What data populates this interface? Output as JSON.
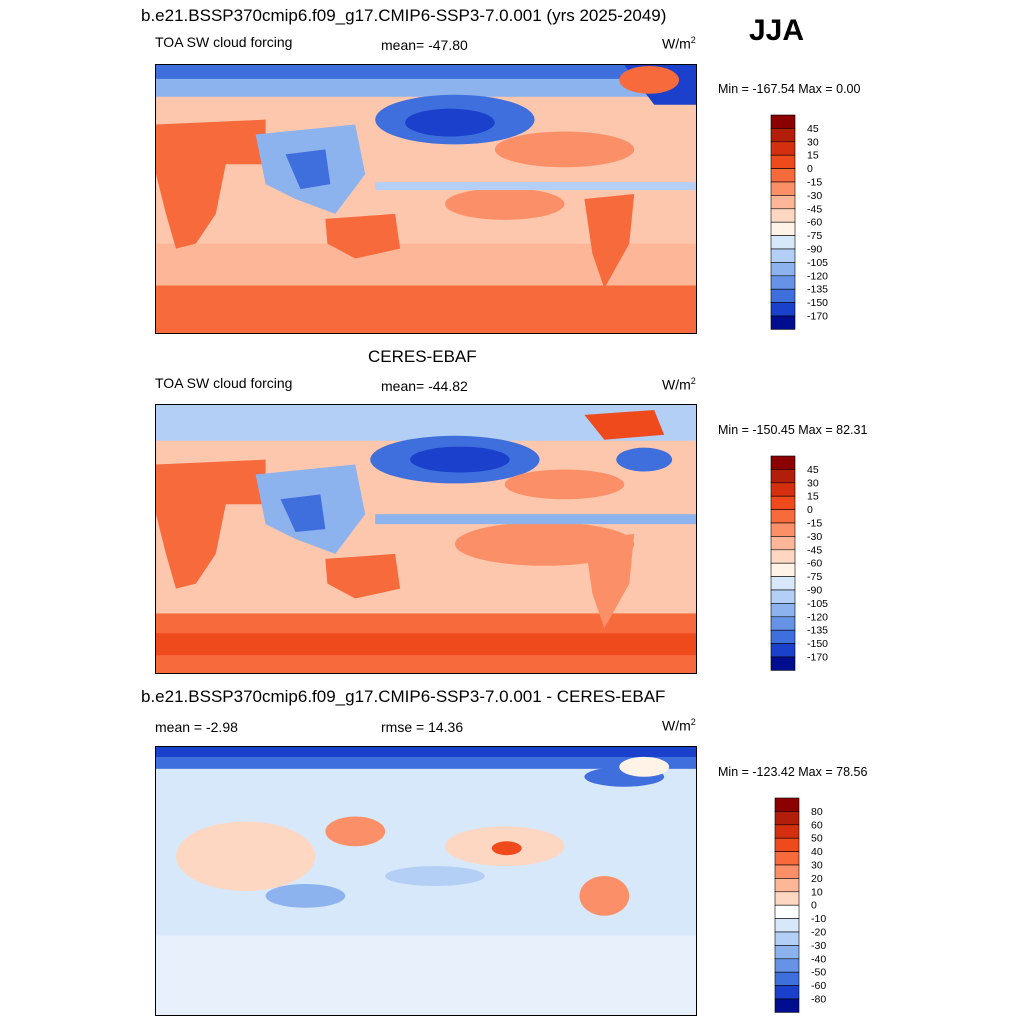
{
  "season": "JJA",
  "panels": [
    {
      "title": "b.e21.BSSP370cmip6.f09_g17.CMIP6-SSP3-7.0.001 (yrs 2025-2049)",
      "left_label": "TOA SW cloud forcing",
      "stat_label": "mean= -47.80",
      "unit": "W/m",
      "unit_sup": "2",
      "minmax": "Min = -167.54 Max =   0.00",
      "colorbar_ticks": [
        "45",
        "30",
        "15",
        "0",
        "-15",
        "-30",
        "-45",
        "-60",
        "-75",
        "-90",
        "-105",
        "-120",
        "-135",
        "-150",
        "-170"
      ],
      "colorbar_colors": [
        "#8b0000",
        "#b21e0a",
        "#d4300f",
        "#ef4a1c",
        "#f76a3c",
        "#fb9068",
        "#fdb798",
        "#fdd7c2",
        "#fff3e8",
        "#d8e8fb",
        "#b3cff6",
        "#8db3ef",
        "#6693e6",
        "#3f6fdc",
        "#1a40cc",
        "#000d8f"
      ]
    },
    {
      "title": "CERES-EBAF",
      "left_label": "TOA SW cloud forcing",
      "stat_label": "mean= -44.82",
      "unit": "W/m",
      "unit_sup": "2",
      "minmax": "Min = -150.45 Max =  82.31",
      "colorbar_ticks": [
        "45",
        "30",
        "15",
        "0",
        "-15",
        "-30",
        "-45",
        "-60",
        "-75",
        "-90",
        "-105",
        "-120",
        "-135",
        "-150",
        "-170"
      ],
      "colorbar_colors": [
        "#8b0000",
        "#b21e0a",
        "#d4300f",
        "#ef4a1c",
        "#f76a3c",
        "#fb9068",
        "#fdb798",
        "#fdd7c2",
        "#fff3e8",
        "#d8e8fb",
        "#b3cff6",
        "#8db3ef",
        "#6693e6",
        "#3f6fdc",
        "#1a40cc",
        "#000d8f"
      ]
    },
    {
      "title": "b.e21.BSSP370cmip6.f09_g17.CMIP6-SSP3-7.0.001 - CERES-EBAF",
      "left_label": "mean =  -2.98",
      "stat_label": "rmse =  14.36",
      "unit": "W/m",
      "unit_sup": "2",
      "minmax": "Min = -123.42 Max =  78.56",
      "colorbar_ticks": [
        "80",
        "60",
        "50",
        "40",
        "30",
        "20",
        "10",
        "0",
        "-10",
        "-20",
        "-30",
        "-40",
        "-50",
        "-60",
        "-80"
      ],
      "colorbar_colors": [
        "#8b0000",
        "#b21e0a",
        "#d4300f",
        "#ef4a1c",
        "#f76a3c",
        "#fb9068",
        "#fdb798",
        "#fdd7c2",
        "#ffffff",
        "#d8e8fb",
        "#b3cff6",
        "#8db3ef",
        "#6693e6",
        "#3f6fdc",
        "#1a40cc",
        "#000d8f"
      ]
    }
  ],
  "chart_data": [
    {
      "type": "heatmap",
      "title": "b.e21.BSSP370cmip6.f09_g17.CMIP6-SSP3-7.0.001 (yrs 2025-2049)",
      "variable": "TOA SW cloud forcing",
      "season": "JJA",
      "mean": -47.8,
      "min": -167.54,
      "max": 0.0,
      "units": "W/m2",
      "contour_levels": [
        -170,
        -150,
        -135,
        -120,
        -105,
        -90,
        -75,
        -60,
        -45,
        -30,
        -15,
        0,
        15,
        30,
        45
      ]
    },
    {
      "type": "heatmap",
      "title": "CERES-EBAF",
      "variable": "TOA SW cloud forcing",
      "season": "JJA",
      "mean": -44.82,
      "min": -150.45,
      "max": 82.31,
      "units": "W/m2",
      "contour_levels": [
        -170,
        -150,
        -135,
        -120,
        -105,
        -90,
        -75,
        -60,
        -45,
        -30,
        -15,
        0,
        15,
        30,
        45
      ]
    },
    {
      "type": "heatmap",
      "title": "b.e21.BSSP370cmip6.f09_g17.CMIP6-SSP3-7.0.001 - CERES-EBAF",
      "season": "JJA",
      "mean": -2.98,
      "rmse": 14.36,
      "min": -123.42,
      "max": 78.56,
      "units": "W/m2",
      "contour_levels": [
        -80,
        -60,
        -50,
        -40,
        -30,
        -20,
        -10,
        0,
        10,
        20,
        30,
        40,
        50,
        60,
        80
      ]
    }
  ]
}
